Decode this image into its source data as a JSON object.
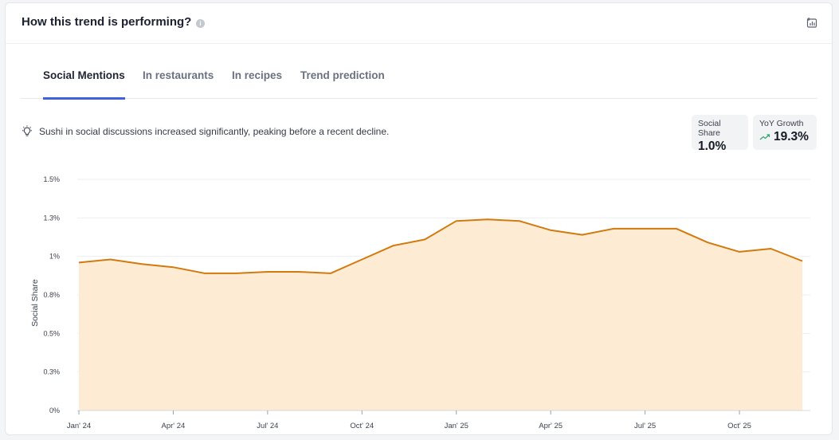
{
  "header": {
    "title": "How this trend is performing?",
    "info_icon": "info-icon",
    "export_icon": "chart-export-icon"
  },
  "tabs": [
    {
      "label": "Social Mentions",
      "active": true
    },
    {
      "label": "In restaurants",
      "active": false
    },
    {
      "label": "In recipes",
      "active": false
    },
    {
      "label": "Trend prediction",
      "active": false
    }
  ],
  "insight": {
    "icon": "lightbulb-icon",
    "text": "Sushi in social discussions increased significantly, peaking before a recent decline."
  },
  "stats": {
    "social_share": {
      "label": "Social Share",
      "value": "1.0%"
    },
    "yoy_growth": {
      "label": "YoY Growth",
      "value": "19.3%",
      "icon": "trend-up-icon",
      "color": "#2fa36b"
    }
  },
  "colors": {
    "accent_tab": "#3d63dd",
    "line": "#d27a0f",
    "area": "#fdebd3"
  },
  "chart_data": {
    "type": "area",
    "ylabel": "Social Share",
    "xlabel": "",
    "ylim": [
      0,
      1.5
    ],
    "y_ticks": [
      {
        "value": 0,
        "label": "0%"
      },
      {
        "value": 0.25,
        "label": "0.3%"
      },
      {
        "value": 0.5,
        "label": "0.5%"
      },
      {
        "value": 0.75,
        "label": "0.8%"
      },
      {
        "value": 1.0,
        "label": "1%"
      },
      {
        "value": 1.25,
        "label": "1.3%"
      },
      {
        "value": 1.5,
        "label": "1.5%"
      }
    ],
    "x_ticks": [
      "Jan' 24",
      "Apr' 24",
      "Jul' 24",
      "Oct' 24",
      "Jan' 25",
      "Apr' 25",
      "Jul' 25",
      "Oct' 25"
    ],
    "x_tick_index": [
      0,
      3,
      6,
      9,
      12,
      15,
      18,
      21
    ],
    "months": [
      "Jan' 24",
      "Feb' 24",
      "Mar' 24",
      "Apr' 24",
      "May' 24",
      "Jun' 24",
      "Jul' 24",
      "Aug' 24",
      "Sep' 24",
      "Oct' 24",
      "Nov' 24",
      "Dec' 24",
      "Jan' 25",
      "Feb' 25",
      "Mar' 25",
      "Apr' 25",
      "May' 25",
      "Jun' 25",
      "Jul' 25",
      "Aug' 25",
      "Sep' 25",
      "Oct' 25",
      "Nov' 25",
      "Dec' 25"
    ],
    "series": [
      {
        "values": [
          0.96,
          0.98,
          0.95,
          0.93,
          0.89,
          0.89,
          0.9,
          0.9,
          0.89,
          0.98,
          1.07,
          1.11,
          1.23,
          1.24,
          1.23,
          1.17,
          1.14,
          1.18,
          1.18,
          1.18,
          1.09,
          1.03,
          1.05,
          0.97
        ]
      }
    ],
    "grid": true
  }
}
